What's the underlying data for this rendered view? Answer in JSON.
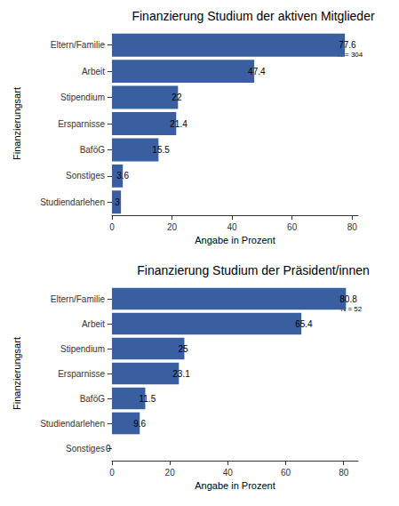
{
  "chart_data": [
    {
      "type": "bar",
      "orientation": "horizontal",
      "title": "Finanzierung Studium der aktiven Mitglieder",
      "x_label": "Angabe in Prozent",
      "y_label": "Finanzierungsart",
      "categories": [
        "Eltern/Familie",
        "Arbeit",
        "Stipendium",
        "Ersparnisse",
        "BaföG",
        "Sonstiges",
        "Studiendarlehen"
      ],
      "values": [
        77.6,
        47.4,
        22,
        21.4,
        15.5,
        3.6,
        3
      ],
      "color": "#3a5fa0",
      "data_labels": true,
      "grid": false,
      "annotation": "N = 304",
      "xlim": [
        0,
        82
      ],
      "xticks": [
        0,
        20,
        40,
        60,
        80
      ]
    },
    {
      "type": "bar",
      "orientation": "horizontal",
      "title": "Finanzierung Studium der Präsident/innen",
      "x_label": "Angabe in Prozent",
      "y_label": "Finanzierungsart",
      "categories": [
        "Eltern/Familie",
        "Arbeit",
        "Stipendium",
        "Ersparnisse",
        "BaföG",
        "Studiendarlehen",
        "Sonstiges"
      ],
      "values": [
        80.8,
        65.4,
        25,
        23.1,
        11.5,
        9.6,
        0
      ],
      "color": "#3a5fa0",
      "data_labels": true,
      "grid": false,
      "annotation": "N = 52",
      "xlim": [
        0,
        85
      ],
      "xticks": [
        0,
        20,
        40,
        60,
        80
      ]
    }
  ]
}
